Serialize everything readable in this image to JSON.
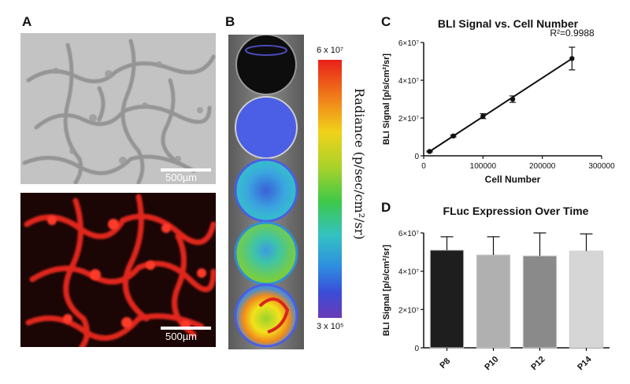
{
  "panels": {
    "a": {
      "letter": "A",
      "top_scale_label": "500µm",
      "bottom_scale_label": "500µm"
    },
    "b": {
      "letter": "B",
      "colorbar_max": "6 x 10⁷",
      "colorbar_min": "3 x 10⁵",
      "colorbar_label": "Radiance (p/sec/cm²/sr)"
    },
    "c": {
      "letter": "C"
    },
    "d": {
      "letter": "D"
    }
  },
  "chart_data": [
    {
      "type": "scatter",
      "title": "BLI Signal vs. Cell Number",
      "xlabel": "Cell Number",
      "ylabel": "BLI Signal [p/s/cm²/sr]",
      "annotation": "R²=0.9988",
      "xlim": [
        0,
        300000
      ],
      "ylim": [
        0,
        60000000
      ],
      "xticks": [
        0,
        100000,
        200000,
        300000
      ],
      "xtick_labels": [
        "0",
        "100000",
        "200000",
        "300000"
      ],
      "yticks": [
        0,
        20000000,
        40000000,
        60000000
      ],
      "ytick_labels": [
        "0",
        "2×10⁷",
        "4×10⁷",
        "6×10⁷"
      ],
      "points": [
        {
          "x": 10000,
          "y": 2300000,
          "err": 300000
        },
        {
          "x": 50000,
          "y": 10500000,
          "err": 500000
        },
        {
          "x": 100000,
          "y": 21000000,
          "err": 1300000
        },
        {
          "x": 150000,
          "y": 30000000,
          "err": 1700000
        },
        {
          "x": 250000,
          "y": 51500000,
          "err": 6000000
        }
      ],
      "fit_line": [
        [
          10000,
          2300000
        ],
        [
          250000,
          51500000
        ]
      ],
      "grid": false
    },
    {
      "type": "bar",
      "title": "FLuc Expression Over Time",
      "xlabel": "",
      "ylabel": "BLI Signal [p/s/cm²/sr]",
      "ylim": [
        0,
        60000000
      ],
      "yticks": [
        0,
        20000000,
        40000000,
        60000000
      ],
      "ytick_labels": [
        "0",
        "2×10⁷",
        "4×10⁷",
        "6×10⁷"
      ],
      "categories": [
        "P8",
        "P10",
        "P12",
        "P14"
      ],
      "values": [
        51000000,
        48500000,
        48000000,
        50500000
      ],
      "errors": [
        7000000,
        9500000,
        12000000,
        9000000
      ],
      "colors": [
        "#1e1e1e",
        "#b0b0b0",
        "#8a8a8a",
        "#d6d6d6"
      ],
      "grid": false
    }
  ]
}
